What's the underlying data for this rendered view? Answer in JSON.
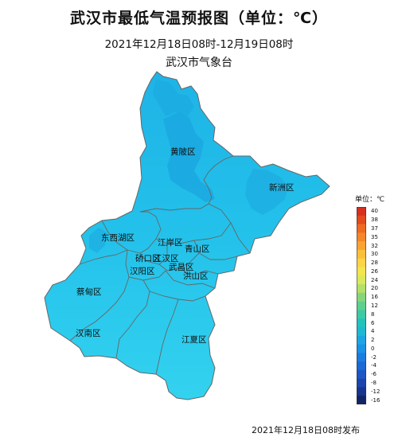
{
  "title": "武汉市最低气温预报图（单位：℃）",
  "subtitle": "2021年12月18日08时-12月19日08时",
  "agency": "武汉市气象台",
  "footer": "2021年12月18日08时发布",
  "legend": {
    "title": "单位：℃",
    "labels": [
      "40",
      "38",
      "37",
      "35",
      "32",
      "30",
      "28",
      "26",
      "24",
      "20",
      "16",
      "12",
      "8",
      "6",
      "4",
      "2",
      "0",
      "-2",
      "-4",
      "-6",
      "-8",
      "-12",
      "-16"
    ],
    "colors": [
      "#d7301f",
      "#e34a1c",
      "#ef6a22",
      "#f5862a",
      "#f9a332",
      "#fbbf3a",
      "#fcd445",
      "#f3e54e",
      "#dbe85a",
      "#b3e068",
      "#86d679",
      "#5fcf8e",
      "#3ec9a5",
      "#22c3bd",
      "#1fb8d3",
      "#1ba6e3",
      "#1a92e6",
      "#1a7ddf",
      "#1b69d5",
      "#1c57c6",
      "#1b45ad",
      "#17358e",
      "#122463"
    ]
  },
  "districts": {
    "huangpi": "黄陂区",
    "xinzhou": "新洲区",
    "dongxihu": "东西湖区",
    "jiangan": "江岸区",
    "qingshan": "青山区",
    "qiaokou": "硚口区",
    "jianghan": "江汉区",
    "wuchang": "武昌区",
    "hanyang": "汉阳区",
    "hongshan": "洪山区",
    "caidian": "蔡甸区",
    "hannan": "汉南区",
    "jiangxia": "江夏区"
  }
}
